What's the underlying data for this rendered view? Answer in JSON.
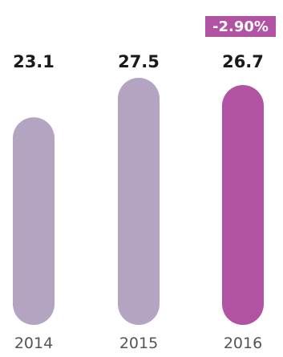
{
  "chart_data": {
    "type": "bar",
    "categories": [
      "2014",
      "2015",
      "2016"
    ],
    "values": [
      23.1,
      27.5,
      26.7
    ],
    "value_labels": [
      "23.1",
      "27.5",
      "26.7"
    ],
    "title": "",
    "xlabel": "",
    "ylabel": "",
    "grid": false,
    "legend": "none",
    "annotation": {
      "text": "-2.90%",
      "category": "2016"
    },
    "bar_colors": [
      "#b3a4c2",
      "#b3a4c2",
      "#b152a3"
    ],
    "annotation_color": "#b152a3",
    "value_label_color": "#1a1a1a",
    "category_label_color": "#555555"
  }
}
